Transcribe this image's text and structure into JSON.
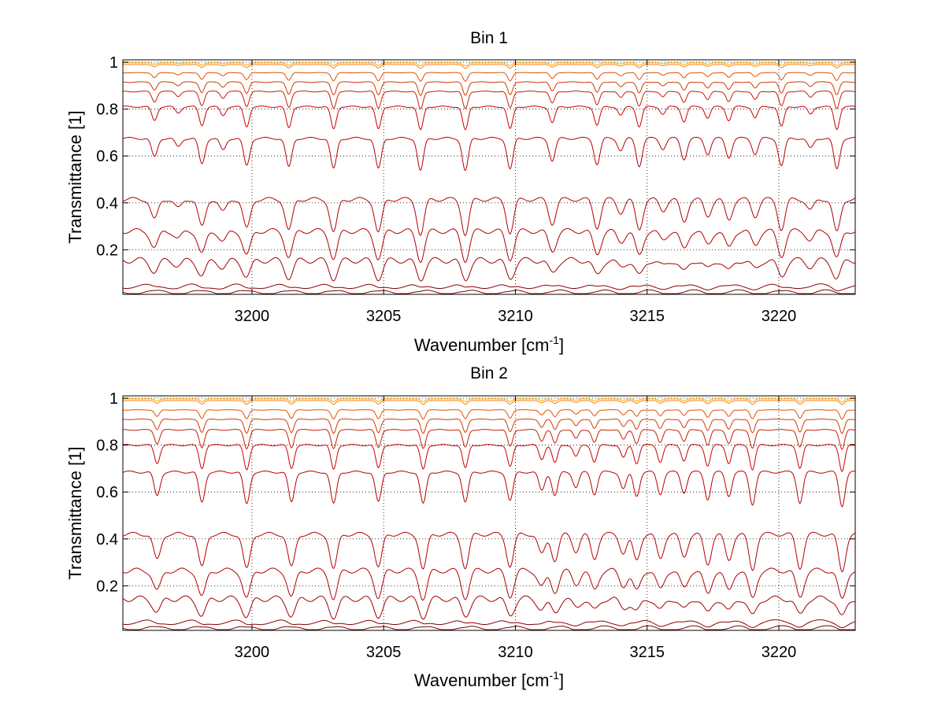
{
  "chart_data": [
    {
      "type": "line",
      "title": "Bin 1",
      "xlabel": "Wavenumber [cm",
      "xlabel_sup": "-1",
      "xlabel_close": "]",
      "ylabel": "Transmittance [1]",
      "xlim": [
        3195.1,
        3222.9
      ],
      "ylim": [
        0.01,
        1.01
      ],
      "xticks": [
        3200,
        3205,
        3210,
        3215,
        3220
      ],
      "yticks": [
        0.2,
        0.4,
        0.6,
        0.8,
        1
      ],
      "ytick_labels": [
        "0.2",
        "0.4",
        "0.6",
        "0.8",
        "1"
      ],
      "grid": "dotted",
      "series_baselines": [
        0.02,
        0.045,
        0.155,
        0.28,
        0.415,
        0.675,
        0.81,
        0.875,
        0.915,
        0.955,
        0.99,
        0.997
      ],
      "series_colors": [
        "#7a0000",
        "#8b0000",
        "#a00000",
        "#b00000",
        "#b40000",
        "#b80000",
        "#cc0000",
        "#c81e00",
        "#d03a00",
        "#e05000",
        "#ff7f00",
        "#ffa500"
      ],
      "absorption_lines": [
        {
          "x": 3196.3,
          "strength": 0.55
        },
        {
          "x": 3197.2,
          "strength": 0.25
        },
        {
          "x": 3198.1,
          "strength": 0.75
        },
        {
          "x": 3198.9,
          "strength": 0.35
        },
        {
          "x": 3199.8,
          "strength": 0.8
        },
        {
          "x": 3201.4,
          "strength": 0.85
        },
        {
          "x": 3203.1,
          "strength": 0.9
        },
        {
          "x": 3204.8,
          "strength": 0.9
        },
        {
          "x": 3206.4,
          "strength": 0.95
        },
        {
          "x": 3208.1,
          "strength": 0.95
        },
        {
          "x": 3209.8,
          "strength": 0.9
        },
        {
          "x": 3211.4,
          "strength": 0.65
        },
        {
          "x": 3213.1,
          "strength": 0.75
        },
        {
          "x": 3214.0,
          "strength": 0.35
        },
        {
          "x": 3214.7,
          "strength": 0.8
        },
        {
          "x": 3215.6,
          "strength": 0.3
        },
        {
          "x": 3216.4,
          "strength": 0.6
        },
        {
          "x": 3217.3,
          "strength": 0.45
        },
        {
          "x": 3218.1,
          "strength": 0.55
        },
        {
          "x": 3219.1,
          "strength": 0.45
        },
        {
          "x": 3220.1,
          "strength": 0.8
        },
        {
          "x": 3221.2,
          "strength": 0.3
        },
        {
          "x": 3222.2,
          "strength": 0.9
        }
      ]
    },
    {
      "type": "line",
      "title": "Bin 2",
      "xlabel": "Wavenumber [cm",
      "xlabel_sup": "-1",
      "xlabel_close": "]",
      "ylabel": "Transmittance [1]",
      "xlim": [
        3195.1,
        3222.9
      ],
      "ylim": [
        0.01,
        1.01
      ],
      "xticks": [
        3200,
        3205,
        3210,
        3215,
        3220
      ],
      "yticks": [
        0.2,
        0.4,
        0.6,
        0.8,
        1
      ],
      "ytick_labels": [
        "0.2",
        "0.4",
        "0.6",
        "0.8",
        "1"
      ],
      "grid": "dotted",
      "series_baselines": [
        0.02,
        0.045,
        0.145,
        0.265,
        0.42,
        0.685,
        0.8,
        0.865,
        0.91,
        0.95,
        0.99,
        0.997
      ],
      "series_colors": [
        "#7a0000",
        "#8b0000",
        "#a00000",
        "#b00000",
        "#b40000",
        "#b80000",
        "#cc0000",
        "#c81e00",
        "#d03a00",
        "#e05000",
        "#ff7f00",
        "#ffa500"
      ],
      "absorption_lines": [
        {
          "x": 3196.4,
          "strength": 0.7
        },
        {
          "x": 3198.1,
          "strength": 0.9
        },
        {
          "x": 3199.8,
          "strength": 0.95
        },
        {
          "x": 3201.5,
          "strength": 0.9
        },
        {
          "x": 3203.1,
          "strength": 0.95
        },
        {
          "x": 3204.8,
          "strength": 0.9
        },
        {
          "x": 3206.5,
          "strength": 0.95
        },
        {
          "x": 3208.1,
          "strength": 0.9
        },
        {
          "x": 3209.8,
          "strength": 0.85
        },
        {
          "x": 3211.0,
          "strength": 0.55
        },
        {
          "x": 3211.5,
          "strength": 0.7
        },
        {
          "x": 3212.3,
          "strength": 0.45
        },
        {
          "x": 3213.0,
          "strength": 0.65
        },
        {
          "x": 3214.1,
          "strength": 0.5
        },
        {
          "x": 3214.6,
          "strength": 0.7
        },
        {
          "x": 3215.5,
          "strength": 0.65
        },
        {
          "x": 3216.4,
          "strength": 0.6
        },
        {
          "x": 3217.3,
          "strength": 0.8
        },
        {
          "x": 3218.1,
          "strength": 0.7
        },
        {
          "x": 3219.0,
          "strength": 0.95
        },
        {
          "x": 3220.8,
          "strength": 0.9
        },
        {
          "x": 3222.4,
          "strength": 1.0
        }
      ]
    }
  ]
}
